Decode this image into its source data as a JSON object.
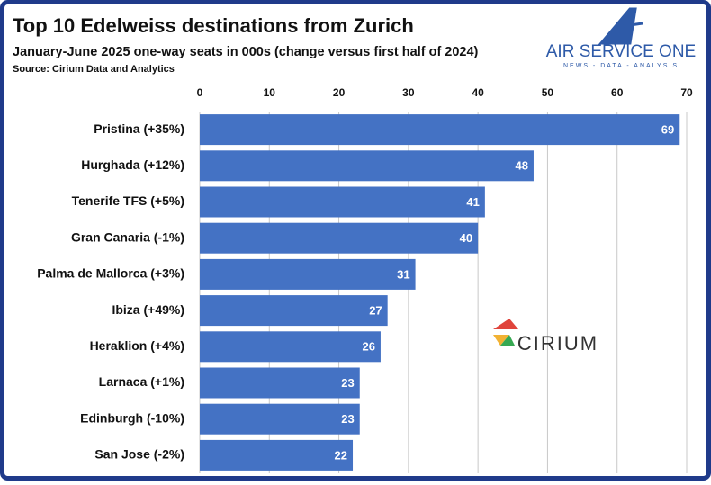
{
  "chart_data": {
    "type": "barh",
    "title": "Top 10 Edelweiss destinations from Zurich",
    "subtitle": "January-June 2025 one-way seats in 000s (change versus first half of 2024)",
    "source": "Source: Cirium Data and Analytics",
    "brand": "AIR SERVICE ONE",
    "brand_tagline": "NEWS - DATA - ANALYSIS",
    "watermark": "CIRIUM",
    "categories": [
      "Pristina (+35%)",
      "Hurghada (+12%)",
      "Tenerife TFS (+5%)",
      "Gran Canaria (-1%)",
      "Palma de Mallorca (+3%)",
      "Ibiza (+49%)",
      "Heraklion (+4%)",
      "Larnaca (+1%)",
      "Edinburgh (-10%)",
      "San Jose (-2%)"
    ],
    "values": [
      69,
      48,
      41,
      40,
      31,
      27,
      26,
      23,
      23,
      22
    ],
    "color": "#4472c4",
    "xlim": [
      0,
      70
    ],
    "xticks": [
      0,
      10,
      20,
      30,
      40,
      50,
      60,
      70
    ],
    "grid": true
  }
}
